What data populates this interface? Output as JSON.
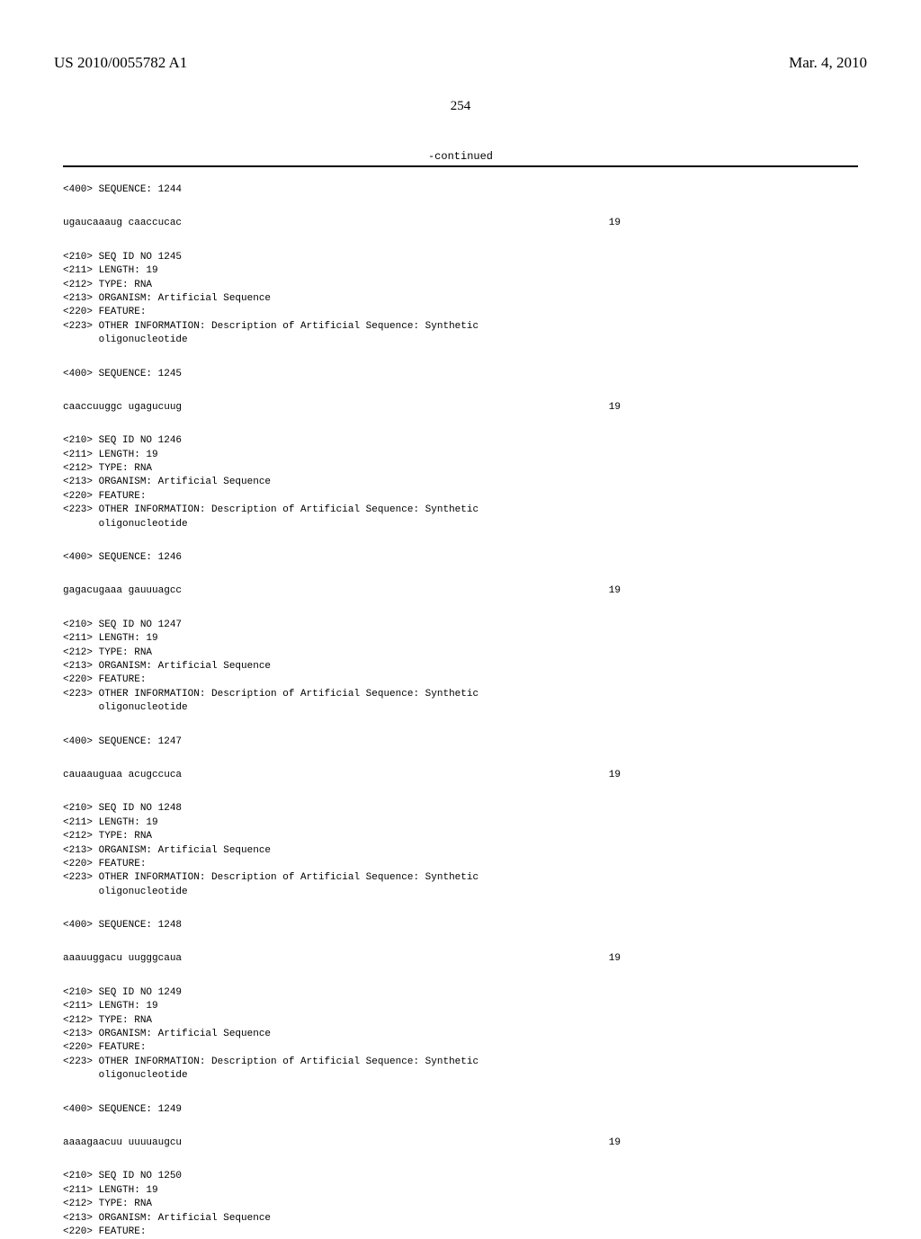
{
  "header": {
    "pub_number": "US 2010/0055782 A1",
    "pub_date": "Mar. 4, 2010",
    "page_number": "254"
  },
  "continued_label": "-continued",
  "blocks": [
    {
      "lines": [
        "<400> SEQUENCE: 1244"
      ]
    },
    {
      "sequence": "ugaucaaaug caaccucac",
      "length": "19"
    },
    {
      "lines": [
        "<210> SEQ ID NO 1245",
        "<211> LENGTH: 19",
        "<212> TYPE: RNA",
        "<213> ORGANISM: Artificial Sequence",
        "<220> FEATURE:",
        "<223> OTHER INFORMATION: Description of Artificial Sequence: Synthetic",
        "      oligonucleotide"
      ]
    },
    {
      "lines": [
        "<400> SEQUENCE: 1245"
      ]
    },
    {
      "sequence": "caaccuuggc ugagucuug",
      "length": "19"
    },
    {
      "lines": [
        "<210> SEQ ID NO 1246",
        "<211> LENGTH: 19",
        "<212> TYPE: RNA",
        "<213> ORGANISM: Artificial Sequence",
        "<220> FEATURE:",
        "<223> OTHER INFORMATION: Description of Artificial Sequence: Synthetic",
        "      oligonucleotide"
      ]
    },
    {
      "lines": [
        "<400> SEQUENCE: 1246"
      ]
    },
    {
      "sequence": "gagacugaaa gauuuagcc",
      "length": "19"
    },
    {
      "lines": [
        "<210> SEQ ID NO 1247",
        "<211> LENGTH: 19",
        "<212> TYPE: RNA",
        "<213> ORGANISM: Artificial Sequence",
        "<220> FEATURE:",
        "<223> OTHER INFORMATION: Description of Artificial Sequence: Synthetic",
        "      oligonucleotide"
      ]
    },
    {
      "lines": [
        "<400> SEQUENCE: 1247"
      ]
    },
    {
      "sequence": "cauaauguaa acugccuca",
      "length": "19"
    },
    {
      "lines": [
        "<210> SEQ ID NO 1248",
        "<211> LENGTH: 19",
        "<212> TYPE: RNA",
        "<213> ORGANISM: Artificial Sequence",
        "<220> FEATURE:",
        "<223> OTHER INFORMATION: Description of Artificial Sequence: Synthetic",
        "      oligonucleotide"
      ]
    },
    {
      "lines": [
        "<400> SEQUENCE: 1248"
      ]
    },
    {
      "sequence": "aaauuggacu uugggcaua",
      "length": "19"
    },
    {
      "lines": [
        "<210> SEQ ID NO 1249",
        "<211> LENGTH: 19",
        "<212> TYPE: RNA",
        "<213> ORGANISM: Artificial Sequence",
        "<220> FEATURE:",
        "<223> OTHER INFORMATION: Description of Artificial Sequence: Synthetic",
        "      oligonucleotide"
      ]
    },
    {
      "lines": [
        "<400> SEQUENCE: 1249"
      ]
    },
    {
      "sequence": "aaaagaacuu uuuuaugcu",
      "length": "19"
    },
    {
      "lines": [
        "<210> SEQ ID NO 1250",
        "<211> LENGTH: 19",
        "<212> TYPE: RNA",
        "<213> ORGANISM: Artificial Sequence",
        "<220> FEATURE:"
      ]
    }
  ]
}
